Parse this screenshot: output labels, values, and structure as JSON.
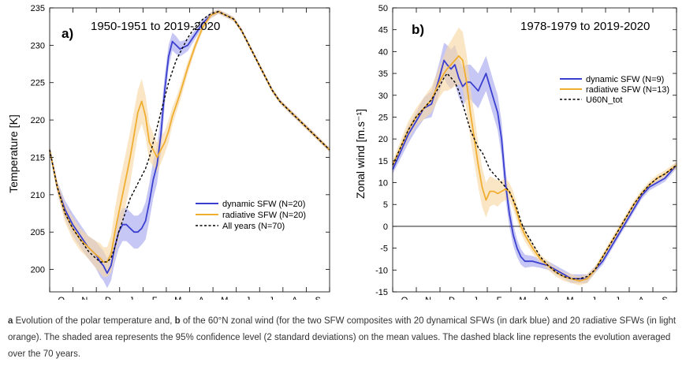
{
  "colors": {
    "dynamic": "#3a3fd0",
    "dynamic_band": "#a9a9f0",
    "radiative": "#f0ae30",
    "radiative_band": "#f8d9a6",
    "all_years": "#000000"
  },
  "caption": {
    "part1_letter": "a",
    "part1_text": "Evolution of the polar temperature and,",
    "part2_letter": "b",
    "part2_text": "of the 60°N zonal wind (for the two SFW composites with 20 dynamical SFWs (in dark blue) and 20 radiative SFWs (in light orange). The shaded area represents the 95% confidence level (2 standard deviations) on the mean values. The dashed black line represents the evolution averaged over the 70 years."
  },
  "chart_data": [
    {
      "type": "line",
      "panel_label": "a)",
      "title": "1950-1951 to 2019-2020",
      "xlabel": "",
      "ylabel": "Temperature [K]",
      "ylim": [
        197,
        235
      ],
      "yticks": [
        200,
        205,
        210,
        215,
        220,
        225,
        230,
        235
      ],
      "xlim": [
        0,
        365
      ],
      "months": [
        "O",
        "N",
        "D",
        "J",
        "F",
        "M",
        "A",
        "M",
        "J",
        "J",
        "A",
        "S"
      ],
      "legend_position": "lower-right",
      "series": [
        {
          "name": "dynamic SFW (N=20)",
          "style": "solid",
          "color": "#3a3fd0",
          "band_color": "#a9a9f0",
          "x": [
            0,
            10,
            20,
            30,
            40,
            50,
            60,
            66,
            70,
            75,
            80,
            85,
            90,
            95,
            100,
            105,
            110,
            115,
            120,
            125,
            130,
            135,
            140,
            145,
            150,
            155,
            160,
            165,
            170,
            180,
            190,
            200,
            210,
            220,
            230,
            240,
            250,
            260,
            270,
            280,
            290,
            300,
            310,
            320,
            330,
            340,
            350,
            365
          ],
          "values": [
            216,
            211,
            208,
            206,
            204.5,
            203,
            202,
            201,
            200.5,
            199.5,
            200.5,
            203,
            205,
            206,
            206,
            205.5,
            205,
            205,
            205.5,
            206.5,
            209,
            212,
            214,
            218,
            224,
            228.5,
            230.5,
            230,
            229.5,
            230,
            231.5,
            233,
            234,
            234.5,
            234,
            233.5,
            232,
            230,
            228,
            226,
            224,
            222.5,
            221.5,
            220.5,
            219.5,
            218.5,
            217.5,
            216
          ],
          "err": [
            0.5,
            0.8,
            1.2,
            1.5,
            1.5,
            1.5,
            1.8,
            2,
            2,
            2,
            2,
            2,
            2.2,
            2.2,
            2.2,
            2.2,
            2.2,
            2.2,
            2.2,
            2.5,
            2.5,
            2.5,
            2.5,
            2.5,
            2,
            1.5,
            1.2,
            1.2,
            1,
            0.8,
            0.6,
            0.5,
            0.4,
            0.3,
            0.3,
            0.3,
            0.3,
            0.3,
            0.3,
            0.3,
            0.3,
            0.3,
            0.3,
            0.3,
            0.3,
            0.3,
            0.3,
            0.3
          ]
        },
        {
          "name": "radiative SFW (N=20)",
          "style": "solid",
          "color": "#f0ae30",
          "band_color": "#f8d9a6",
          "x": [
            0,
            10,
            20,
            30,
            40,
            50,
            60,
            66,
            70,
            75,
            80,
            85,
            90,
            95,
            100,
            105,
            110,
            115,
            120,
            125,
            130,
            135,
            140,
            145,
            150,
            155,
            160,
            165,
            170,
            180,
            190,
            200,
            210,
            220,
            230,
            240,
            250,
            260,
            270,
            280,
            290,
            300,
            310,
            320,
            330,
            340,
            350,
            365
          ],
          "values": [
            216,
            211,
            207.5,
            205.5,
            204,
            203,
            202,
            201.5,
            201,
            201,
            202,
            205,
            207.5,
            210,
            212.5,
            215,
            218,
            221,
            222.5,
            220.5,
            217,
            216,
            215,
            216,
            217,
            218.5,
            220.5,
            222,
            223.5,
            227,
            230,
            232.5,
            234,
            234.5,
            234,
            233.5,
            232,
            230,
            228,
            226,
            224,
            222.5,
            221.5,
            220.5,
            219.5,
            218.5,
            217.5,
            216
          ],
          "err": [
            0.5,
            0.8,
            1.2,
            1.5,
            1.5,
            1.5,
            1.8,
            2,
            2,
            2,
            2.5,
            3,
            3.5,
            3.5,
            3.5,
            3.5,
            3.2,
            3,
            3,
            2.8,
            2.5,
            2.2,
            2,
            1.8,
            1.5,
            1.5,
            1.2,
            1,
            1,
            0.8,
            0.6,
            0.5,
            0.4,
            0.3,
            0.3,
            0.3,
            0.3,
            0.3,
            0.3,
            0.3,
            0.3,
            0.3,
            0.3,
            0.3,
            0.3,
            0.3,
            0.3,
            0.3
          ]
        },
        {
          "name": "All years (N=70)",
          "style": "dashed",
          "color": "#000000",
          "x": [
            0,
            10,
            20,
            30,
            40,
            50,
            60,
            66,
            70,
            75,
            80,
            85,
            90,
            95,
            100,
            105,
            110,
            115,
            120,
            125,
            130,
            135,
            140,
            145,
            150,
            155,
            160,
            165,
            170,
            180,
            190,
            200,
            210,
            220,
            230,
            240,
            250,
            260,
            270,
            280,
            290,
            300,
            310,
            320,
            330,
            340,
            350,
            365
          ],
          "values": [
            216,
            211,
            207.5,
            205.5,
            204,
            202.5,
            201.5,
            201,
            201,
            201,
            201.5,
            203,
            205,
            206.5,
            208,
            209.5,
            210.5,
            211.5,
            212.5,
            213.5,
            215,
            217,
            219,
            221,
            223,
            225,
            226.5,
            228,
            229,
            231,
            232.5,
            233.5,
            234.2,
            234.5,
            234,
            233.5,
            232,
            230,
            228,
            226,
            224,
            222.5,
            221.5,
            220.5,
            219.5,
            218.5,
            217.5,
            216
          ]
        }
      ]
    },
    {
      "type": "line",
      "panel_label": "b)",
      "title": "1978-1979 to 2019-2020",
      "xlabel": "",
      "ylabel": "Zonal wind [m.s⁻¹]",
      "ylim": [
        -15,
        50
      ],
      "yticks": [
        -15,
        -10,
        -5,
        0,
        5,
        10,
        15,
        20,
        25,
        30,
        35,
        40,
        45,
        50
      ],
      "zero_line": 0,
      "xlim": [
        0,
        365
      ],
      "months": [
        "O",
        "N",
        "D",
        "J",
        "F",
        "M",
        "A",
        "M",
        "J",
        "J",
        "A",
        "S"
      ],
      "legend_position": "upper-right",
      "series": [
        {
          "name": "dynamic SFW (N=9)",
          "style": "solid",
          "color": "#3a3fd0",
          "band_color": "#a9a9f0",
          "x": [
            0,
            10,
            20,
            30,
            40,
            50,
            60,
            66,
            70,
            75,
            80,
            85,
            90,
            95,
            100,
            105,
            110,
            115,
            120,
            125,
            130,
            135,
            140,
            145,
            150,
            155,
            160,
            165,
            170,
            180,
            190,
            200,
            210,
            220,
            230,
            240,
            250,
            260,
            270,
            280,
            290,
            300,
            310,
            320,
            330,
            340,
            350,
            365
          ],
          "values": [
            13,
            17,
            21,
            24,
            27,
            28,
            34,
            38,
            37,
            36,
            37,
            34,
            32,
            33,
            33,
            32,
            31,
            33,
            35,
            32,
            29,
            26,
            20,
            10,
            3,
            -2,
            -5,
            -7,
            -8,
            -8,
            -8.5,
            -9,
            -10,
            -11,
            -12,
            -12,
            -12,
            -10,
            -8,
            -5,
            -2,
            1,
            4,
            7,
            9,
            10,
            11,
            14
          ],
          "err": [
            1,
            1.5,
            2,
            2,
            2.5,
            3,
            3.5,
            4,
            4.5,
            4.5,
            4.5,
            4.5,
            4.5,
            4,
            4,
            4,
            4,
            4,
            4,
            4,
            4,
            4,
            4,
            3.5,
            3,
            2.5,
            2,
            1.8,
            1.5,
            1.2,
            1,
            1,
            1,
            1,
            1,
            1,
            1,
            0.8,
            0.8,
            0.8,
            0.8,
            0.8,
            0.8,
            0.8,
            0.8,
            0.8,
            0.8,
            0.8
          ]
        },
        {
          "name": "radiative SFW (N=13)",
          "style": "solid",
          "color": "#f0ae30",
          "band_color": "#f8d9a6",
          "x": [
            0,
            10,
            20,
            30,
            40,
            50,
            60,
            66,
            70,
            75,
            80,
            85,
            90,
            95,
            100,
            105,
            110,
            115,
            120,
            125,
            130,
            135,
            140,
            145,
            150,
            155,
            160,
            165,
            170,
            180,
            190,
            200,
            210,
            220,
            230,
            240,
            250,
            260,
            270,
            280,
            290,
            300,
            310,
            320,
            330,
            340,
            350,
            365
          ],
          "values": [
            14,
            18,
            22,
            25,
            27,
            29,
            33,
            35,
            36,
            37,
            38,
            39,
            38,
            33,
            26,
            20,
            14,
            9,
            6,
            8,
            8,
            7.5,
            8,
            8.5,
            8,
            6,
            3,
            0,
            -2,
            -5,
            -7.5,
            -9,
            -10.5,
            -11.5,
            -12,
            -12.5,
            -12,
            -10,
            -7,
            -4,
            -1,
            2,
            5,
            7.5,
            9.5,
            11,
            12,
            14
          ],
          "err": [
            1,
            1.5,
            2,
            2,
            2.5,
            3,
            3.5,
            4,
            5,
            5.5,
            6,
            6.5,
            6.5,
            6.5,
            6,
            5.5,
            5,
            4.5,
            4,
            3.5,
            3,
            3,
            2.5,
            2.5,
            2,
            2,
            1.8,
            1.5,
            1.5,
            1.2,
            1,
            1,
            1,
            1,
            1,
            1,
            1,
            0.8,
            0.8,
            0.8,
            0.8,
            0.8,
            0.8,
            0.8,
            0.8,
            0.8,
            0.8,
            0.8
          ]
        },
        {
          "name": "U60N_tot",
          "style": "dashed",
          "color": "#000000",
          "x": [
            0,
            10,
            20,
            30,
            40,
            50,
            60,
            66,
            70,
            75,
            80,
            85,
            90,
            95,
            100,
            105,
            110,
            115,
            120,
            125,
            130,
            135,
            140,
            145,
            150,
            155,
            160,
            165,
            170,
            180,
            190,
            200,
            210,
            220,
            230,
            240,
            250,
            260,
            270,
            280,
            290,
            300,
            310,
            320,
            330,
            340,
            350,
            365
          ],
          "values": [
            14,
            18,
            22,
            25,
            27,
            29,
            32,
            34,
            35,
            34,
            33,
            31,
            28,
            25,
            22,
            20,
            18,
            17,
            15,
            13,
            12,
            11,
            10,
            9,
            8,
            6,
            4,
            1,
            -1,
            -4,
            -7,
            -9,
            -10.5,
            -11.5,
            -12,
            -12,
            -11.5,
            -10,
            -7,
            -4,
            -1,
            2,
            5,
            7.5,
            9.5,
            11,
            12,
            14
          ]
        }
      ]
    }
  ]
}
